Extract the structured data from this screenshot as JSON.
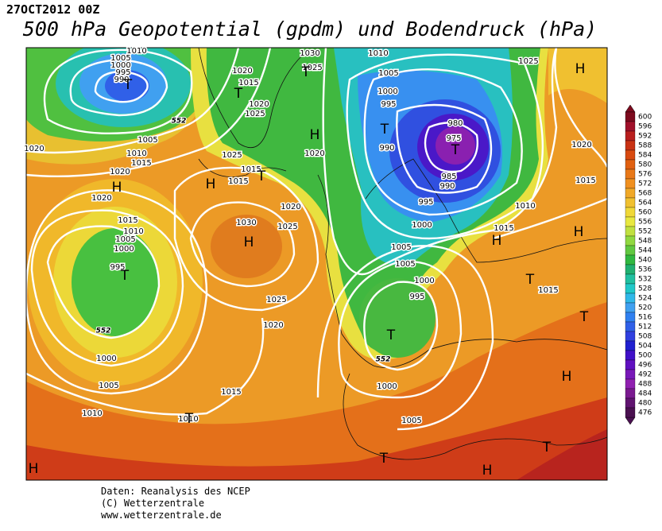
{
  "header": {
    "date": "27OCT2012 00Z",
    "title": "500 hPa Geopotential (gpdm) und Bodendruck (hPa)"
  },
  "map": {
    "isobar_labels": [
      1010,
      1005,
      1000,
      995,
      990,
      1030,
      1025,
      1020,
      1015,
      1020,
      1025,
      1010,
      1005,
      1000,
      995,
      1025,
      980,
      975,
      990,
      985,
      990,
      995,
      1000,
      1010,
      1015,
      1020,
      1015,
      1015,
      1020,
      1025,
      1030,
      1025,
      1005,
      1010,
      1015,
      1020,
      1020,
      1020,
      1015,
      1010,
      1005,
      1000,
      995,
      1005,
      1005,
      1000,
      995,
      1025,
      1020,
      1015,
      1010,
      1010,
      1005,
      1000,
      1000,
      1005,
      1015,
      1020,
      1015
    ],
    "height_labels": [
      552,
      552,
      552
    ],
    "centers": [
      "H",
      "T",
      "T",
      "H",
      "T",
      "T",
      "H",
      "H",
      "T",
      "H",
      "T",
      "H",
      "H",
      "T",
      "T",
      "T",
      "H",
      "T",
      "H",
      "T",
      "H",
      "T",
      "T"
    ]
  },
  "legend": {
    "ticks": [
      600,
      596,
      592,
      588,
      584,
      580,
      576,
      572,
      568,
      564,
      560,
      556,
      552,
      548,
      544,
      540,
      536,
      532,
      528,
      524,
      520,
      516,
      512,
      508,
      504,
      500,
      496,
      492,
      488,
      484,
      480,
      476
    ],
    "colors": [
      "#7d0a1e",
      "#a0102a",
      "#b81e1e",
      "#c83214",
      "#d84a10",
      "#e06010",
      "#e87818",
      "#f09020",
      "#f0a828",
      "#f0c030",
      "#f0d838",
      "#e8e840",
      "#c0e040",
      "#90d840",
      "#60c840",
      "#30b840",
      "#20b070",
      "#20c0a0",
      "#20c8c8",
      "#30b8e8",
      "#40a0f0",
      "#3080f0",
      "#3060e8",
      "#3040e0",
      "#2020d0",
      "#4010c8",
      "#6010c0",
      "#7818b8",
      "#9020b0",
      "#7a1a90",
      "#601470",
      "#4a1050"
    ]
  },
  "footer": {
    "lines": [
      "Daten: Reanalysis des NCEP",
      "(C) Wetterzentrale",
      "www.wetterzentrale.de"
    ]
  }
}
